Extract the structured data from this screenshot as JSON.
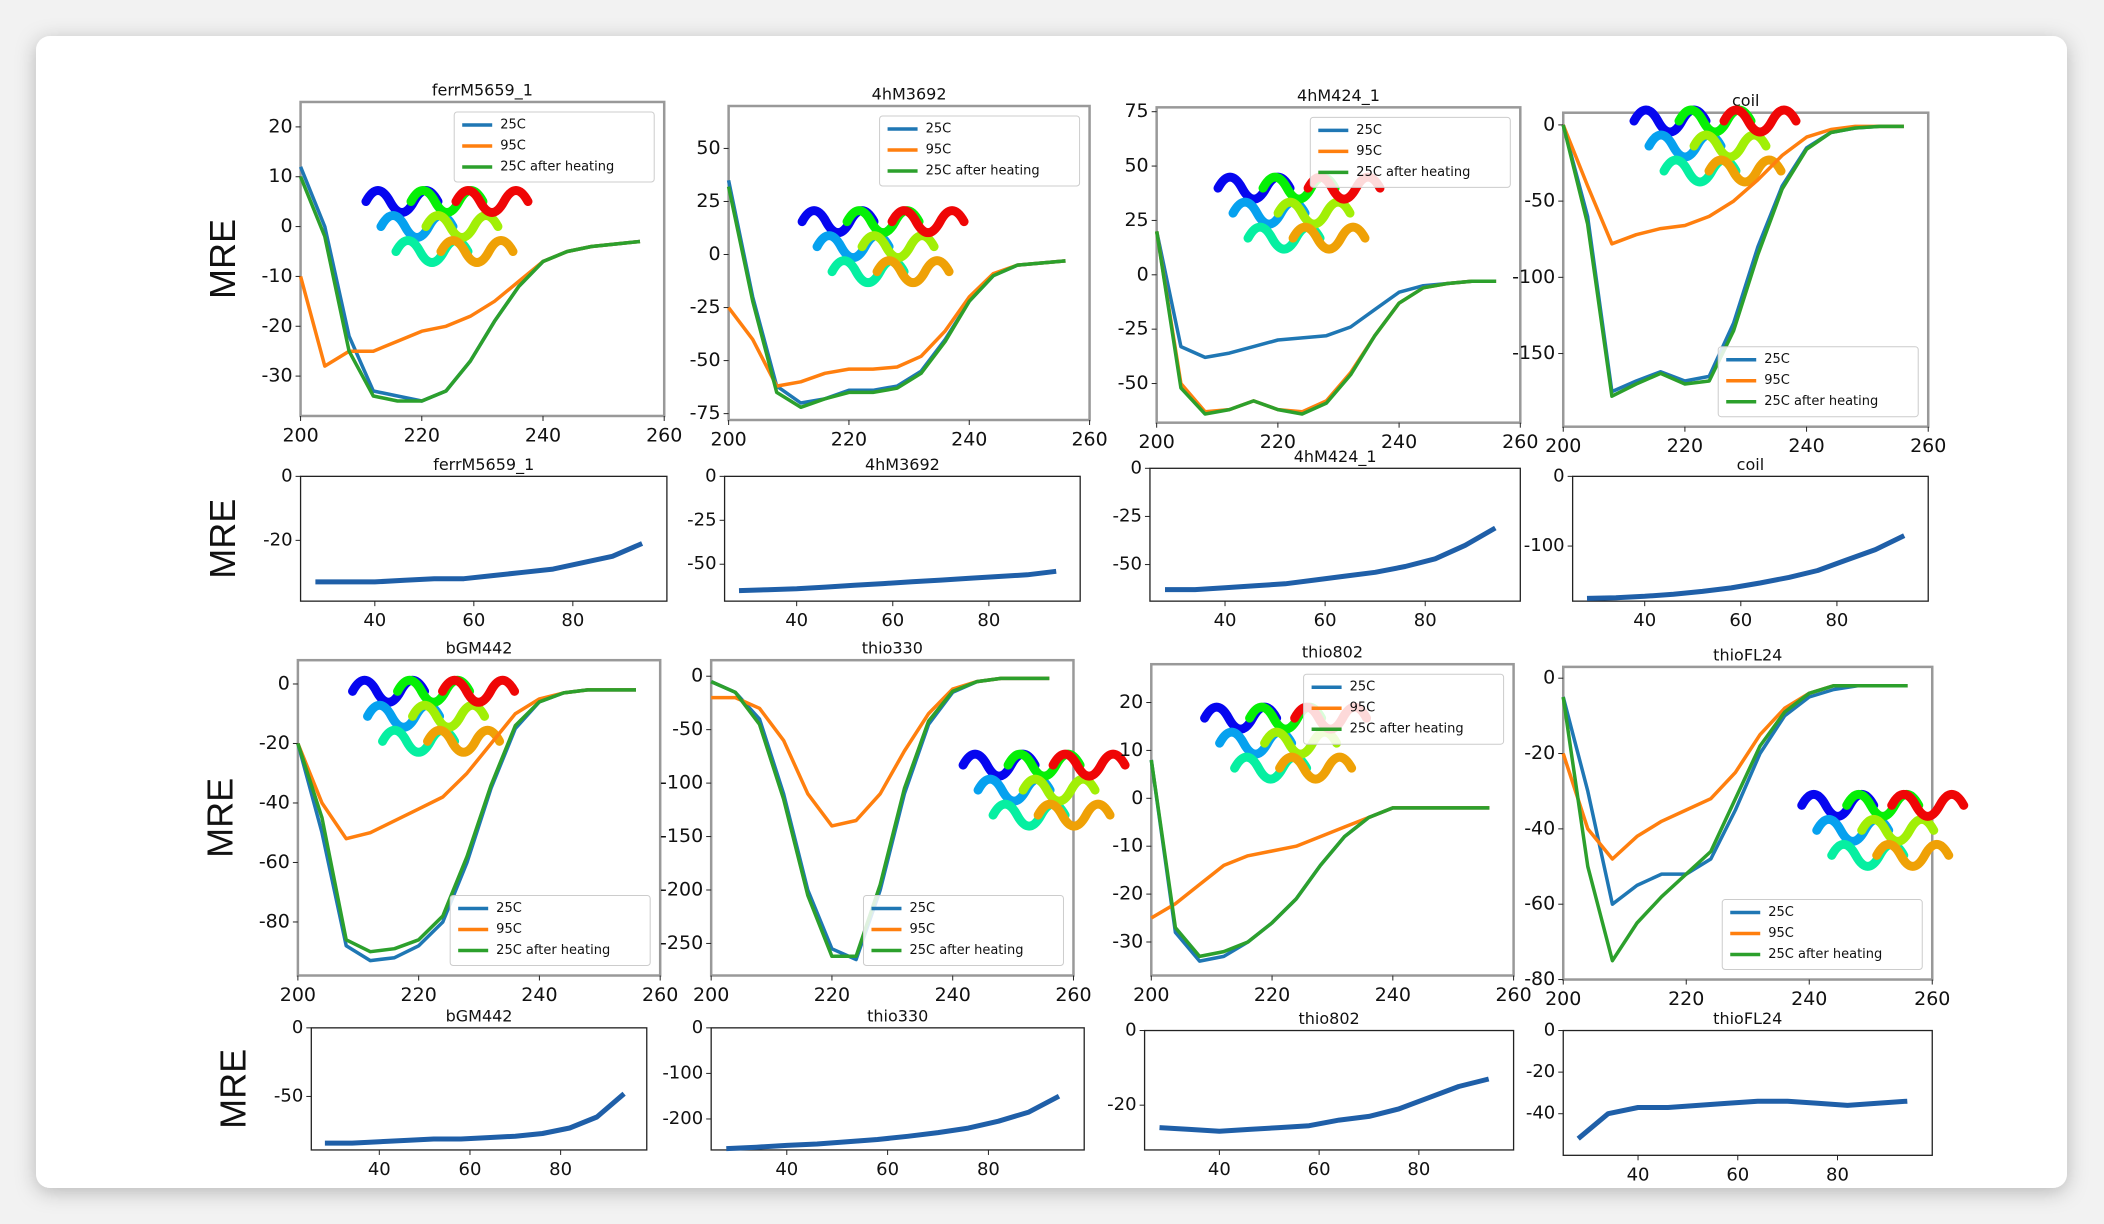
{
  "chart_data": [
    {
      "type": "line",
      "title": "ferrM5659_1",
      "ylabel": "MRE",
      "x": [
        200,
        204,
        208,
        212,
        216,
        220,
        224,
        228,
        232,
        236,
        240,
        244,
        248,
        252,
        256
      ],
      "series": [
        {
          "name": "25C",
          "color": "#1f77b4",
          "values": [
            12,
            0,
            -22,
            -33,
            -34,
            -35,
            -33,
            -27,
            -19,
            -12,
            -7,
            -5,
            -4,
            -3.5,
            -3
          ]
        },
        {
          "name": "95C",
          "color": "#ff7f0e",
          "values": [
            -10,
            -28,
            -25,
            -25,
            -23,
            -21,
            -20,
            -18,
            -15,
            -11,
            -7,
            -5,
            -4,
            -3.5,
            -3
          ]
        },
        {
          "name": "25C after heating",
          "color": "#2ca02c",
          "values": [
            10,
            -2,
            -25,
            -34,
            -35,
            -35,
            -33,
            -27,
            -19,
            -12,
            -7,
            -5,
            -4,
            -3.5,
            -3
          ]
        }
      ],
      "xlim": [
        200,
        260
      ],
      "xticks": [
        200,
        220,
        240,
        260
      ],
      "ylim": [
        -38,
        25
      ],
      "yticks": [
        -30,
        -20,
        -10,
        0,
        10,
        20
      ],
      "legend": "upper right"
    },
    {
      "type": "line",
      "title": "4hM3692",
      "x": [
        200,
        204,
        208,
        212,
        216,
        220,
        224,
        228,
        232,
        236,
        240,
        244,
        248,
        252,
        256
      ],
      "series": [
        {
          "name": "25C",
          "color": "#1f77b4",
          "values": [
            35,
            -20,
            -62,
            -70,
            -68,
            -64,
            -64,
            -62,
            -55,
            -40,
            -22,
            -10,
            -5,
            -4,
            -3
          ]
        },
        {
          "name": "95C",
          "color": "#ff7f0e",
          "values": [
            -25,
            -40,
            -62,
            -60,
            -56,
            -54,
            -54,
            -53,
            -48,
            -36,
            -20,
            -9,
            -5,
            -4,
            -3
          ]
        },
        {
          "name": "25C after heating",
          "color": "#2ca02c",
          "values": [
            32,
            -22,
            -65,
            -72,
            -68,
            -65,
            -65,
            -63,
            -56,
            -41,
            -22,
            -10,
            -5,
            -4,
            -3
          ]
        }
      ],
      "xlim": [
        200,
        260
      ],
      "xticks": [
        200,
        220,
        240,
        260
      ],
      "ylim": [
        -78,
        70
      ],
      "yticks": [
        -75,
        -50,
        -25,
        0,
        25,
        50
      ],
      "legend": "upper right"
    },
    {
      "type": "line",
      "title": "4hM424_1",
      "x": [
        200,
        204,
        208,
        212,
        216,
        220,
        224,
        228,
        232,
        236,
        240,
        244,
        248,
        252,
        256
      ],
      "series": [
        {
          "name": "25C",
          "color": "#1f77b4",
          "values": [
            20,
            -33,
            -38,
            -36,
            -33,
            -30,
            -29,
            -28,
            -24,
            -16,
            -8,
            -5,
            -4,
            -3,
            -3
          ]
        },
        {
          "name": "95C",
          "color": "#ff7f0e",
          "values": [
            20,
            -50,
            -63,
            -62,
            -58,
            -62,
            -63,
            -58,
            -45,
            -28,
            -13,
            -6,
            -4,
            -3,
            -3
          ]
        },
        {
          "name": "25C after heating",
          "color": "#2ca02c",
          "values": [
            20,
            -52,
            -64,
            -62,
            -58,
            -62,
            -64,
            -59,
            -46,
            -28,
            -13,
            -6,
            -4,
            -3,
            -3
          ]
        }
      ],
      "xlim": [
        200,
        260
      ],
      "xticks": [
        200,
        220,
        240,
        260
      ],
      "ylim": [
        -68,
        77
      ],
      "yticks": [
        -50,
        -25,
        0,
        25,
        50,
        75
      ],
      "legend": "upper right"
    },
    {
      "type": "line",
      "title": "coil",
      "x": [
        200,
        204,
        208,
        212,
        216,
        220,
        224,
        228,
        232,
        236,
        240,
        244,
        248,
        252,
        256
      ],
      "series": [
        {
          "name": "25C",
          "color": "#1f77b4",
          "values": [
            0,
            -60,
            -175,
            -168,
            -162,
            -168,
            -165,
            -130,
            -80,
            -40,
            -15,
            -5,
            -2,
            -1,
            -1
          ]
        },
        {
          "name": "95C",
          "color": "#ff7f0e",
          "values": [
            0,
            -40,
            -78,
            -72,
            -68,
            -66,
            -60,
            -50,
            -36,
            -20,
            -8,
            -3,
            -1,
            -1,
            -1
          ]
        },
        {
          "name": "25C after heating",
          "color": "#2ca02c",
          "values": [
            0,
            -65,
            -178,
            -170,
            -163,
            -170,
            -168,
            -135,
            -85,
            -42,
            -16,
            -5,
            -2,
            -1,
            -1
          ]
        }
      ],
      "xlim": [
        200,
        260
      ],
      "xticks": [
        200,
        220,
        240,
        260
      ],
      "ylim": [
        -198,
        8
      ],
      "yticks": [
        0,
        -50,
        -100,
        -150
      ],
      "legend": "lower right"
    },
    {
      "type": "line",
      "title": "ferrM5659_1",
      "ylabel": "MRE",
      "x": [
        28,
        34,
        40,
        46,
        52,
        58,
        64,
        70,
        76,
        82,
        88,
        94
      ],
      "series": [
        {
          "color": "#1f5fa8",
          "values": [
            -33,
            -33,
            -33,
            -32.5,
            -32,
            -32,
            -31,
            -30,
            -29,
            -27,
            -25,
            -21
          ]
        }
      ],
      "xlim": [
        25,
        99
      ],
      "xticks": [
        40,
        60,
        80
      ],
      "ylim": [
        -39,
        0
      ],
      "yticks": [
        0,
        -20
      ]
    },
    {
      "type": "line",
      "title": "4hM3692",
      "x": [
        28,
        34,
        40,
        46,
        52,
        58,
        64,
        70,
        76,
        82,
        88,
        94
      ],
      "series": [
        {
          "color": "#1f5fa8",
          "values": [
            -65,
            -64.5,
            -64,
            -63,
            -62,
            -61,
            -60,
            -59,
            -58,
            -57,
            -56,
            -54
          ]
        }
      ],
      "xlim": [
        25,
        99
      ],
      "xticks": [
        40,
        60,
        80
      ],
      "ylim": [
        -71,
        0
      ],
      "yticks": [
        0,
        -25,
        -50
      ]
    },
    {
      "type": "line",
      "title": "4hM424_1",
      "x": [
        28,
        34,
        40,
        46,
        52,
        58,
        64,
        70,
        76,
        82,
        88,
        94
      ],
      "series": [
        {
          "color": "#1f5fa8",
          "values": [
            -63,
            -63,
            -62,
            -61,
            -60,
            -58,
            -56,
            -54,
            -51,
            -47,
            -40,
            -31
          ]
        }
      ],
      "xlim": [
        25,
        99
      ],
      "xticks": [
        40,
        60,
        80
      ],
      "ylim": [
        -69,
        0
      ],
      "yticks": [
        0,
        -25,
        -50
      ]
    },
    {
      "type": "line",
      "title": "coil",
      "x": [
        28,
        34,
        40,
        46,
        52,
        58,
        64,
        70,
        76,
        82,
        88,
        94
      ],
      "series": [
        {
          "color": "#1f5fa8",
          "values": [
            -175,
            -174,
            -172,
            -169,
            -165,
            -160,
            -153,
            -145,
            -135,
            -120,
            -105,
            -85
          ]
        }
      ],
      "xlim": [
        25,
        99
      ],
      "xticks": [
        40,
        60,
        80
      ],
      "ylim": [
        -179,
        0
      ],
      "yticks": [
        0,
        -100
      ]
    },
    {
      "type": "line",
      "title": "bGM442",
      "ylabel": "MRE",
      "x": [
        200,
        204,
        208,
        212,
        216,
        220,
        224,
        228,
        232,
        236,
        240,
        244,
        248,
        252,
        256
      ],
      "series": [
        {
          "name": "25C",
          "color": "#1f77b4",
          "values": [
            -20,
            -50,
            -88,
            -93,
            -92,
            -88,
            -80,
            -60,
            -35,
            -15,
            -6,
            -3,
            -2,
            -2,
            -2
          ]
        },
        {
          "name": "95C",
          "color": "#ff7f0e",
          "values": [
            -20,
            -40,
            -52,
            -50,
            -46,
            -42,
            -38,
            -30,
            -20,
            -10,
            -5,
            -3,
            -2,
            -2,
            -2
          ]
        },
        {
          "name": "25C after heating",
          "color": "#2ca02c",
          "values": [
            -20,
            -45,
            -86,
            -90,
            -89,
            -86,
            -78,
            -58,
            -34,
            -14,
            -6,
            -3,
            -2,
            -2,
            -2
          ]
        }
      ],
      "xlim": [
        200,
        260
      ],
      "xticks": [
        200,
        220,
        240,
        260
      ],
      "ylim": [
        -98,
        8
      ],
      "yticks": [
        0,
        -20,
        -40,
        -60,
        -80
      ],
      "legend": "lower right"
    },
    {
      "type": "line",
      "title": "thio330",
      "x": [
        200,
        204,
        208,
        212,
        216,
        220,
        224,
        228,
        232,
        236,
        240,
        244,
        248,
        252,
        256
      ],
      "series": [
        {
          "name": "25C",
          "color": "#1f77b4",
          "values": [
            -5,
            -15,
            -40,
            -110,
            -200,
            -255,
            -265,
            -200,
            -110,
            -45,
            -15,
            -5,
            -2,
            -2,
            -2
          ]
        },
        {
          "name": "95C",
          "color": "#ff7f0e",
          "values": [
            -20,
            -20,
            -30,
            -60,
            -110,
            -140,
            -135,
            -110,
            -70,
            -35,
            -12,
            -5,
            -2,
            -2,
            -2
          ]
        },
        {
          "name": "25C after heating",
          "color": "#2ca02c",
          "values": [
            -5,
            -15,
            -45,
            -115,
            -205,
            -262,
            -262,
            -195,
            -105,
            -42,
            -14,
            -5,
            -2,
            -2,
            -2
          ]
        }
      ],
      "xlim": [
        200,
        260
      ],
      "xticks": [
        200,
        220,
        240,
        260
      ],
      "ylim": [
        -280,
        15
      ],
      "yticks": [
        0,
        -50,
        -100,
        -150,
        -200,
        -250
      ],
      "legend": "lower right"
    },
    {
      "type": "line",
      "title": "thio802",
      "x": [
        200,
        204,
        208,
        212,
        216,
        220,
        224,
        228,
        232,
        236,
        240,
        244,
        248,
        252,
        256
      ],
      "series": [
        {
          "name": "25C",
          "color": "#1f77b4",
          "values": [
            8,
            -28,
            -34,
            -33,
            -30,
            -26,
            -21,
            -14,
            -8,
            -4,
            -2,
            -2,
            -2,
            -2,
            -2
          ]
        },
        {
          "name": "95C",
          "color": "#ff7f0e",
          "values": [
            -25,
            -22,
            -18,
            -14,
            -12,
            -11,
            -10,
            -8,
            -6,
            -4,
            -2,
            -2,
            -2,
            -2,
            -2
          ]
        },
        {
          "name": "25C after heating",
          "color": "#2ca02c",
          "values": [
            8,
            -27,
            -33,
            -32,
            -30,
            -26,
            -21,
            -14,
            -8,
            -4,
            -2,
            -2,
            -2,
            -2,
            -2
          ]
        }
      ],
      "xlim": [
        200,
        260
      ],
      "xticks": [
        200,
        220,
        240,
        260
      ],
      "ylim": [
        -37,
        28
      ],
      "yticks": [
        -30,
        -20,
        -10,
        0,
        10,
        20
      ],
      "legend": "upper right"
    },
    {
      "type": "line",
      "title": "thioFL24",
      "x": [
        200,
        204,
        208,
        212,
        216,
        220,
        224,
        228,
        232,
        236,
        240,
        244,
        248,
        252,
        256
      ],
      "series": [
        {
          "name": "25C",
          "color": "#1f77b4",
          "values": [
            -5,
            -30,
            -60,
            -55,
            -52,
            -52,
            -48,
            -35,
            -20,
            -10,
            -5,
            -3,
            -2,
            -2,
            -2
          ]
        },
        {
          "name": "95C",
          "color": "#ff7f0e",
          "values": [
            -20,
            -40,
            -48,
            -42,
            -38,
            -35,
            -32,
            -25,
            -15,
            -8,
            -4,
            -2,
            -2,
            -2,
            -2
          ]
        },
        {
          "name": "25C after heating",
          "color": "#2ca02c",
          "values": [
            -5,
            -50,
            -75,
            -65,
            -58,
            -52,
            -46,
            -32,
            -18,
            -9,
            -4,
            -2,
            -2,
            -2,
            -2
          ]
        }
      ],
      "xlim": [
        200,
        260
      ],
      "xticks": [
        200,
        220,
        240,
        260
      ],
      "ylim": [
        -80,
        3
      ],
      "yticks": [
        0,
        -20,
        -40,
        -60,
        -80
      ],
      "legend": "lower right"
    },
    {
      "type": "line",
      "title": "bGM442",
      "ylabel": "MRE",
      "x": [
        28,
        34,
        40,
        46,
        52,
        58,
        64,
        70,
        76,
        82,
        88,
        94
      ],
      "series": [
        {
          "color": "#1f5fa8",
          "values": [
            -84,
            -84,
            -83,
            -82,
            -81,
            -81,
            -80,
            -79,
            -77,
            -73,
            -65,
            -48
          ]
        }
      ],
      "xlim": [
        25,
        99
      ],
      "xticks": [
        40,
        60,
        80
      ],
      "ylim": [
        -89,
        0
      ],
      "yticks": [
        0,
        -50
      ]
    },
    {
      "type": "line",
      "title": "thio330",
      "x": [
        28,
        34,
        40,
        46,
        52,
        58,
        64,
        70,
        76,
        82,
        88,
        94
      ],
      "series": [
        {
          "color": "#1f5fa8",
          "values": [
            -265,
            -262,
            -258,
            -255,
            -250,
            -245,
            -238,
            -230,
            -220,
            -205,
            -185,
            -150
          ]
        }
      ],
      "xlim": [
        25,
        99
      ],
      "xticks": [
        40,
        60,
        80
      ],
      "ylim": [
        -268,
        0
      ],
      "yticks": [
        0,
        -100,
        -200
      ]
    },
    {
      "type": "line",
      "title": "thio802",
      "x": [
        28,
        34,
        40,
        46,
        52,
        58,
        64,
        70,
        76,
        82,
        88,
        94
      ],
      "series": [
        {
          "color": "#1f5fa8",
          "values": [
            -26,
            -26.5,
            -27,
            -26.5,
            -26,
            -25.5,
            -24,
            -23,
            -21,
            -18,
            -15,
            -13
          ]
        }
      ],
      "xlim": [
        25,
        99
      ],
      "xticks": [
        40,
        60,
        80
      ],
      "ylim": [
        -32,
        0
      ],
      "yticks": [
        0,
        -20
      ]
    },
    {
      "type": "line",
      "title": "thioFL24",
      "x": [
        28,
        34,
        40,
        46,
        52,
        58,
        64,
        70,
        76,
        82,
        88,
        94
      ],
      "series": [
        {
          "color": "#1f5fa8",
          "values": [
            -52,
            -40,
            -37,
            -37,
            -36,
            -35,
            -34,
            -34,
            -35,
            -36,
            -35,
            -34
          ]
        }
      ],
      "xlim": [
        25,
        99
      ],
      "xticks": [
        40,
        60,
        80
      ],
      "ylim": [
        -60,
        0
      ],
      "yticks": [
        0,
        -20,
        -40
      ]
    }
  ]
}
